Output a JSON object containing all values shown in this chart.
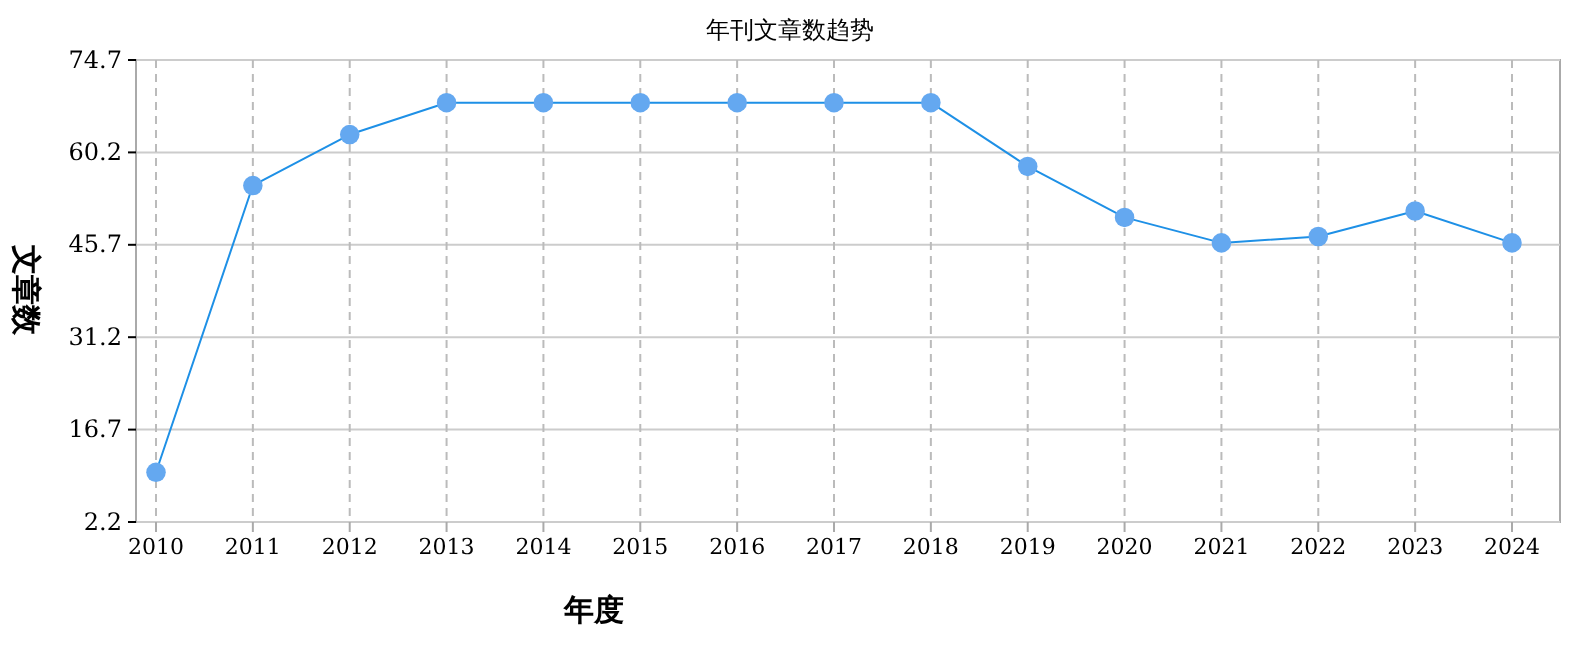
{
  "chart_data": {
    "type": "line",
    "title": "年刊文章数趋势",
    "xlabel": "年度",
    "ylabel": "文章数",
    "categories": [
      "2010",
      "2011",
      "2012",
      "2013",
      "2014",
      "2015",
      "2016",
      "2017",
      "2018",
      "2019",
      "2020",
      "2021",
      "2022",
      "2023",
      "2024"
    ],
    "series": [
      {
        "color": "#1e90e6",
        "values": [
          10,
          55,
          63,
          68,
          68,
          68,
          68,
          68,
          68,
          58,
          50,
          46,
          47,
          51,
          46
        ]
      }
    ],
    "ylim": [
      2.2,
      74.7
    ],
    "yticks": [
      2.2,
      16.7,
      31.2,
      45.7,
      60.2,
      74.7
    ],
    "grid": true,
    "marker": "circle",
    "line_style": "solid"
  }
}
